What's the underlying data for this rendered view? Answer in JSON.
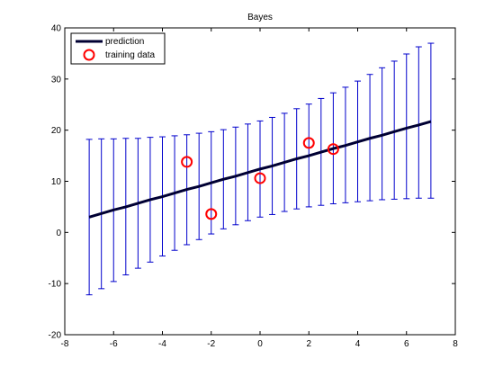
{
  "chart_data": {
    "type": "errorbar_line",
    "title": "Bayes",
    "xlabel": "",
    "ylabel": "",
    "xlim": [
      -8,
      8
    ],
    "ylim": [
      -20,
      40
    ],
    "xticks": [
      -8,
      -6,
      -4,
      -2,
      0,
      2,
      4,
      6,
      8
    ],
    "yticks": [
      -20,
      -10,
      0,
      10,
      20,
      30,
      40
    ],
    "grid": false,
    "legend_position": "top-left",
    "prediction": {
      "name": "prediction",
      "color": "#000033",
      "x": [
        -7,
        -6.5,
        -6,
        -5.5,
        -5,
        -4.5,
        -4,
        -3.5,
        -3,
        -2.5,
        -2,
        -1.5,
        -1,
        -0.5,
        0,
        0.5,
        1,
        1.5,
        2,
        2.5,
        3,
        3.5,
        4,
        4.5,
        5,
        5.5,
        6,
        6.5,
        7
      ],
      "y": [
        3.0,
        3.7,
        4.4,
        5.0,
        5.7,
        6.4,
        7.0,
        7.7,
        8.4,
        9.0,
        9.7,
        10.4,
        11.0,
        11.7,
        12.4,
        13.0,
        13.7,
        14.4,
        15.0,
        15.7,
        16.4,
        17.0,
        17.7,
        18.4,
        19.0,
        19.7,
        20.4,
        21.0,
        21.7
      ],
      "upper": [
        18.2,
        18.3,
        18.3,
        18.4,
        18.4,
        18.6,
        18.7,
        18.9,
        19.1,
        19.4,
        19.7,
        20.1,
        20.6,
        21.2,
        21.8,
        22.5,
        23.3,
        24.2,
        25.1,
        26.2,
        27.3,
        28.4,
        29.6,
        30.9,
        32.2,
        33.5,
        34.9,
        36.3,
        37.0
      ],
      "lower": [
        -12.2,
        -11.0,
        -9.6,
        -8.3,
        -7.0,
        -5.8,
        -4.6,
        -3.5,
        -2.4,
        -1.4,
        -0.3,
        0.7,
        1.5,
        2.3,
        3.0,
        3.5,
        4.1,
        4.6,
        5.0,
        5.3,
        5.6,
        5.8,
        6.0,
        6.2,
        6.4,
        6.5,
        6.6,
        6.7,
        6.7
      ]
    },
    "training_data": {
      "name": "training data",
      "color": "#ff0000",
      "x": [
        -3,
        -2,
        0,
        2,
        3
      ],
      "y": [
        13.8,
        3.6,
        10.6,
        17.5,
        16.3
      ]
    },
    "errorbar_color": "#0000cc"
  }
}
